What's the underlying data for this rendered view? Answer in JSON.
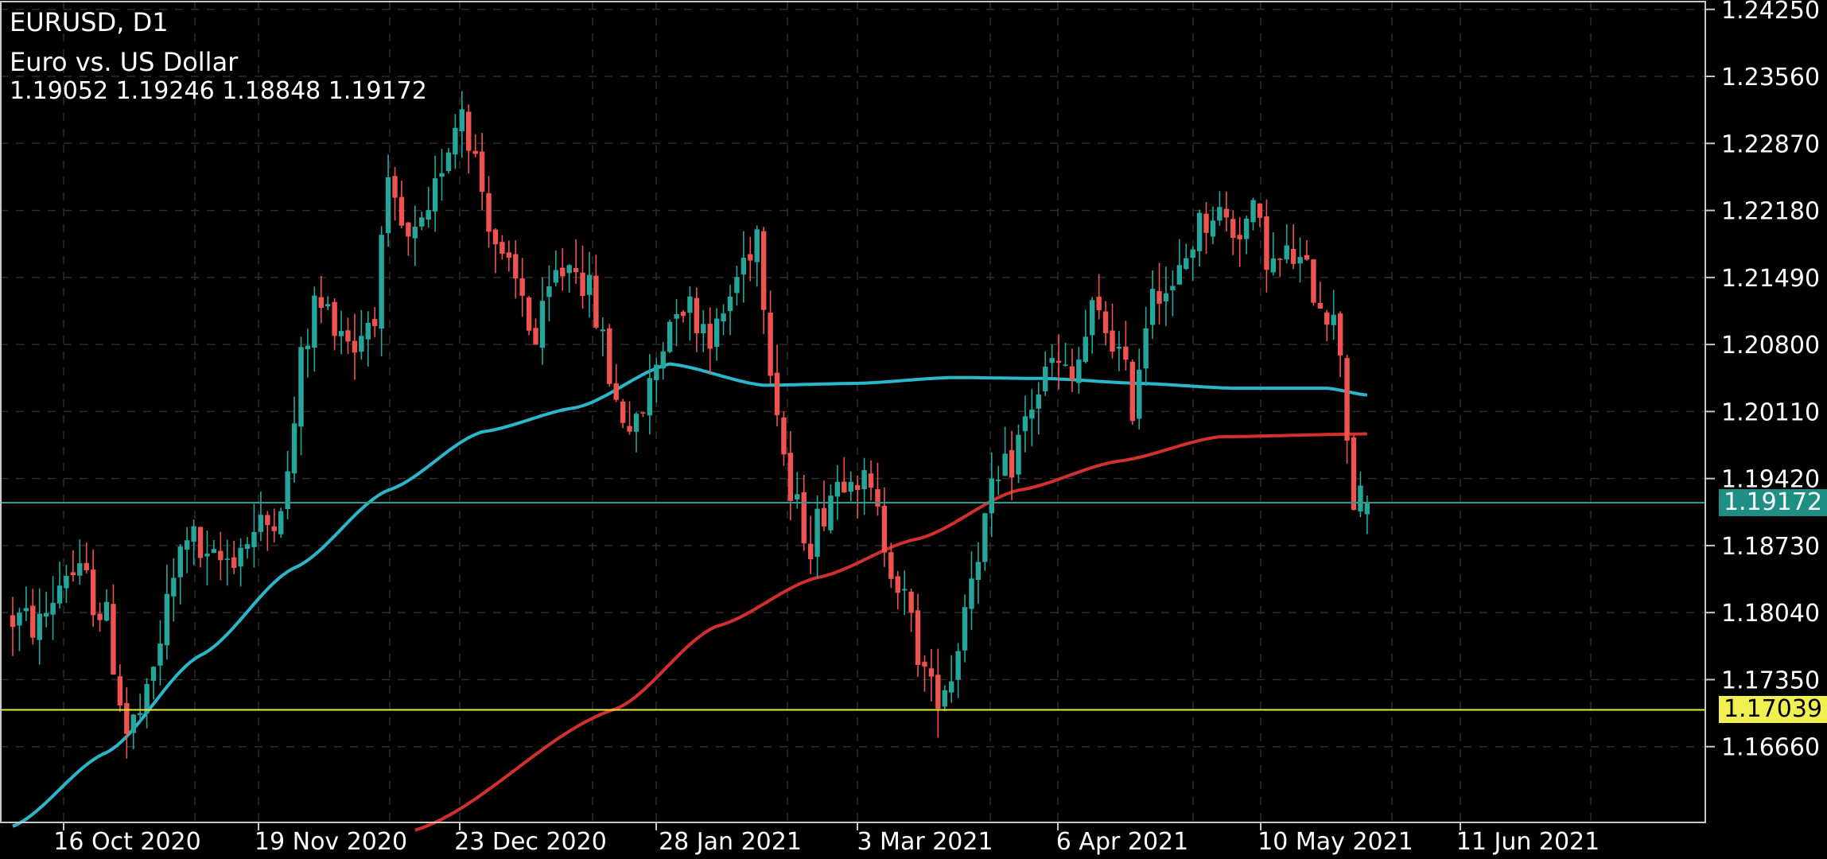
{
  "header": {
    "symbol_timeframe": "EURUSD, D1",
    "description": "Euro vs. US Dollar",
    "ohlc": "1.19052 1.19246 1.18848 1.19172"
  },
  "colors": {
    "background": "#000000",
    "grid": "#2e2e2e",
    "frame": "#c8c8c8",
    "bull": "#26a69a",
    "bear": "#ef5350",
    "ma_fast": "#2ab7ca",
    "ma_slow": "#d32f2f",
    "bid_line": "#2e9c93",
    "level_line": "#e8e84a"
  },
  "bid_label": "1.19172",
  "level_label": "1.17039",
  "chart_data": {
    "type": "candlestick",
    "x_tick_labels": [
      "16 Oct 2020",
      "19 Nov 2020",
      "23 Dec 2020",
      "28 Jan 2021",
      "3 Mar 2021",
      "6 Apr 2021",
      "10 May 2021",
      "11 Jun 2021"
    ],
    "y_tick_labels": [
      "1.24250",
      "1.23560",
      "1.22870",
      "1.22180",
      "1.21490",
      "1.20800",
      "1.20110",
      "1.19420",
      "1.18730",
      "1.18040",
      "1.17350",
      "1.16660"
    ],
    "ylim": [
      1.1588,
      1.2433
    ],
    "grid": true,
    "horizontal_lines": [
      {
        "name": "bid",
        "value": 1.19172
      },
      {
        "name": "level",
        "value": 1.17039
      }
    ],
    "trend_anchors": [
      [
        0,
        1.18
      ],
      [
        5,
        1.179
      ],
      [
        9,
        1.185
      ],
      [
        12,
        1.1832
      ],
      [
        15,
        1.1795
      ],
      [
        18,
        1.168
      ],
      [
        21,
        1.171
      ],
      [
        24,
        1.181
      ],
      [
        27,
        1.189
      ],
      [
        30,
        1.185
      ],
      [
        33,
        1.186
      ],
      [
        36,
        1.188
      ],
      [
        39,
        1.1895
      ],
      [
        42,
        1.194
      ],
      [
        44,
        1.206
      ],
      [
        46,
        1.212
      ],
      [
        49,
        1.211
      ],
      [
        52,
        1.208
      ],
      [
        55,
        1.212
      ],
      [
        57,
        1.223
      ],
      [
        60,
        1.218
      ],
      [
        63,
        1.22
      ],
      [
        65,
        1.227
      ],
      [
        68,
        1.233
      ],
      [
        71,
        1.224
      ],
      [
        74,
        1.216
      ],
      [
        77,
        1.213
      ],
      [
        79,
        1.208
      ],
      [
        82,
        1.215
      ],
      [
        85,
        1.217
      ],
      [
        88,
        1.211
      ],
      [
        91,
        1.202
      ],
      [
        94,
        1.199
      ],
      [
        97,
        1.206
      ],
      [
        100,
        1.213
      ],
      [
        103,
        1.211
      ],
      [
        106,
        1.209
      ],
      [
        109,
        1.215
      ],
      [
        112,
        1.22
      ],
      [
        114,
        1.207
      ],
      [
        117,
        1.192
      ],
      [
        120,
        1.188
      ],
      [
        123,
        1.193
      ],
      [
        126,
        1.196
      ],
      [
        129,
        1.192
      ],
      [
        132,
        1.186
      ],
      [
        135,
        1.179
      ],
      [
        138,
        1.172
      ],
      [
        141,
        1.174
      ],
      [
        144,
        1.185
      ],
      [
        147,
        1.192
      ],
      [
        150,
        1.196
      ],
      [
        153,
        1.202
      ],
      [
        156,
        1.206
      ],
      [
        159,
        1.204
      ],
      [
        162,
        1.211
      ],
      [
        165,
        1.209
      ],
      [
        168,
        1.202
      ],
      [
        171,
        1.215
      ],
      [
        174,
        1.213
      ],
      [
        177,
        1.219
      ],
      [
        180,
        1.222
      ],
      [
        183,
        1.22
      ],
      [
        186,
        1.221
      ],
      [
        189,
        1.216
      ],
      [
        192,
        1.217
      ],
      [
        195,
        1.214
      ],
      [
        197,
        1.212
      ],
      [
        199,
        1.208
      ],
      [
        200,
        1.199
      ],
      [
        201,
        1.192
      ],
      [
        202,
        1.1917
      ]
    ],
    "ma_fast": {
      "name": "",
      "points": [
        [
          0,
          1.1584
        ],
        [
          14,
          1.166
        ],
        [
          28,
          1.176
        ],
        [
          42,
          1.185
        ],
        [
          56,
          1.193
        ],
        [
          70,
          1.199
        ],
        [
          84,
          1.2015
        ],
        [
          98,
          1.206
        ],
        [
          112,
          1.2038
        ],
        [
          126,
          1.204
        ],
        [
          140,
          1.2046
        ],
        [
          154,
          1.2045
        ],
        [
          168,
          1.204
        ],
        [
          182,
          1.2035
        ],
        [
          196,
          1.2035
        ],
        [
          202,
          1.2028
        ]
      ]
    },
    "ma_slow": {
      "name": "",
      "points": [
        [
          60,
          1.158
        ],
        [
          90,
          1.1705
        ],
        [
          105,
          1.179
        ],
        [
          120,
          1.184
        ],
        [
          135,
          1.188
        ],
        [
          150,
          1.193
        ],
        [
          165,
          1.196
        ],
        [
          180,
          1.1985
        ],
        [
          202,
          1.1988
        ]
      ]
    },
    "last_candle": {
      "open": 1.19052,
      "high": 1.19246,
      "low": 1.18848,
      "close": 1.19172
    }
  }
}
